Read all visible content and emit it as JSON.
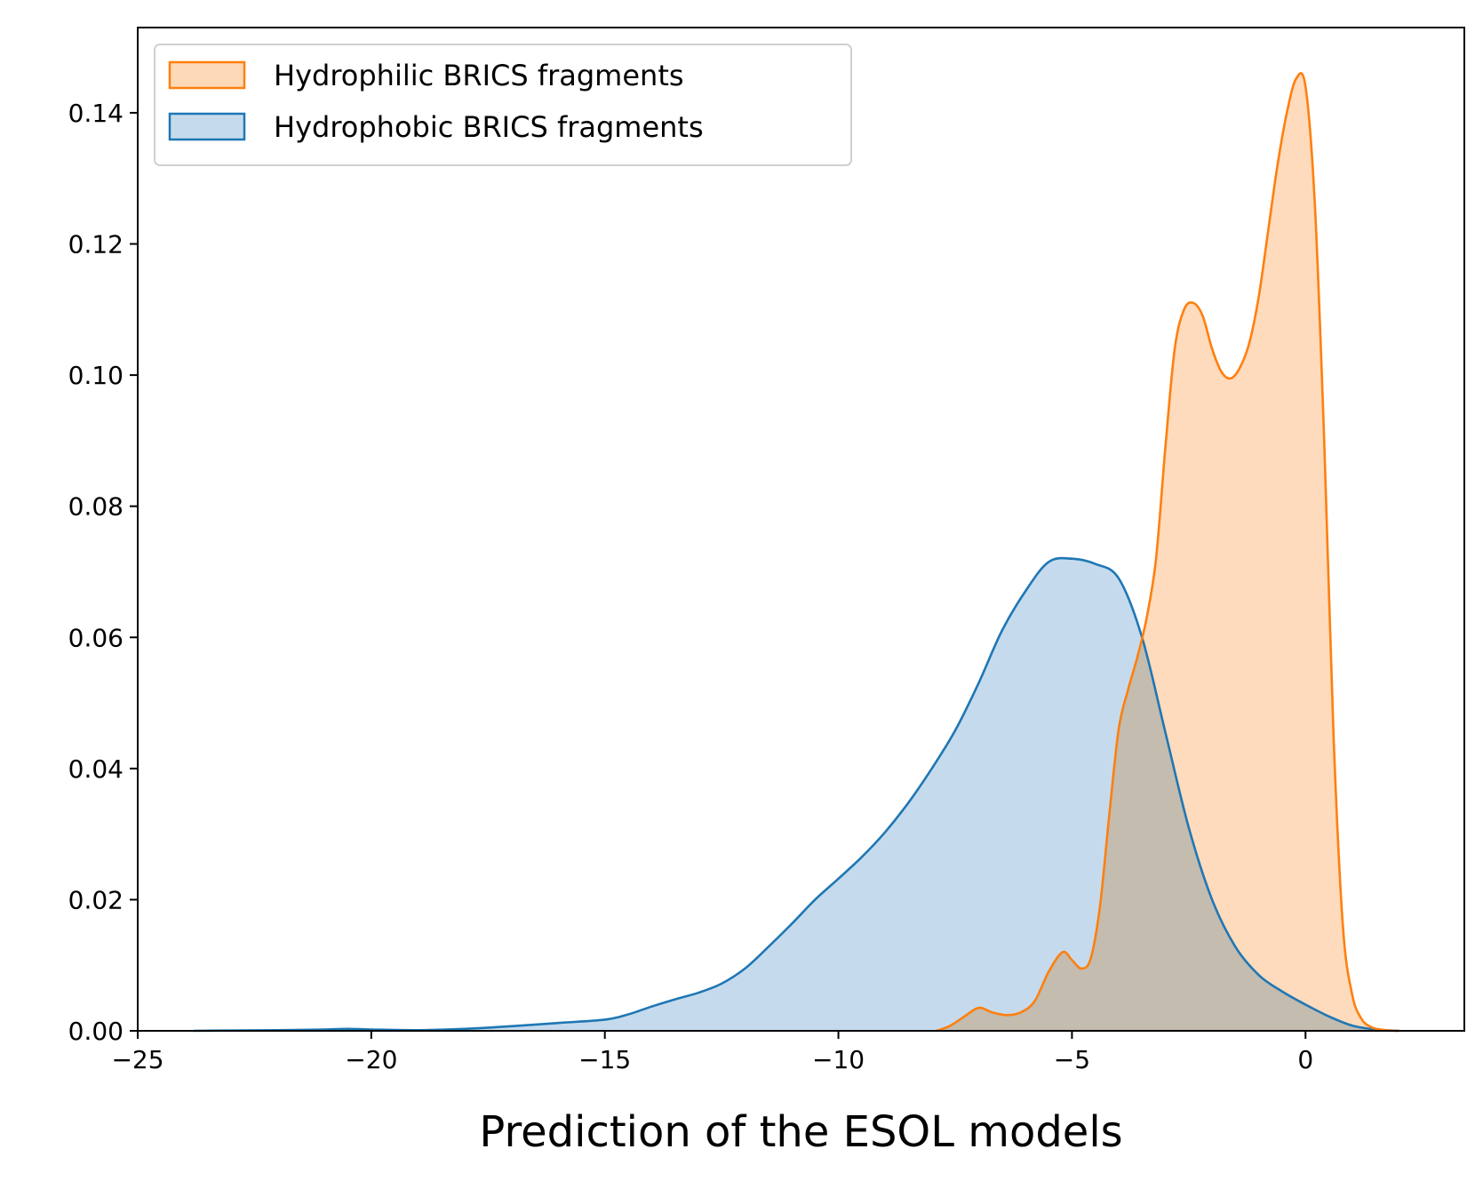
{
  "chart_data": {
    "type": "area",
    "title": "",
    "xlabel": "Prediction of the ESOL models",
    "ylabel": "",
    "xlim": [
      -25,
      3.4
    ],
    "ylim": [
      0,
      0.153
    ],
    "xticks": [
      -25,
      -20,
      -15,
      -10,
      -5,
      0
    ],
    "xtick_labels": [
      "−25",
      "−20",
      "−15",
      "−10",
      "−5",
      "0"
    ],
    "yticks": [
      0,
      0.02,
      0.04,
      0.06,
      0.08,
      0.1,
      0.12,
      0.14
    ],
    "ytick_labels": [
      "0.00",
      "0.02",
      "0.04",
      "0.06",
      "0.08",
      "0.10",
      "0.12",
      "0.14"
    ],
    "grid": false,
    "legend_position": "top-left",
    "series": [
      {
        "name": "Hydrophilic BRICS fragments",
        "color": "#ff7f0e",
        "fill": "#fdd9b8",
        "x": [
          -7.9,
          -7.6,
          -7.3,
          -7.0,
          -6.7,
          -6.4,
          -6.1,
          -5.8,
          -5.5,
          -5.2,
          -5.0,
          -4.8,
          -4.6,
          -4.4,
          -4.2,
          -4.0,
          -3.8,
          -3.6,
          -3.4,
          -3.2,
          -3.0,
          -2.8,
          -2.6,
          -2.4,
          -2.2,
          -2.0,
          -1.8,
          -1.6,
          -1.4,
          -1.2,
          -1.0,
          -0.8,
          -0.6,
          -0.4,
          -0.2,
          0.0,
          0.2,
          0.4,
          0.6,
          0.8,
          1.0,
          1.2,
          1.4,
          1.6,
          1.8,
          2.0
        ],
        "y": [
          0.0,
          0.0008,
          0.0022,
          0.0035,
          0.0028,
          0.0024,
          0.0028,
          0.0045,
          0.009,
          0.012,
          0.0108,
          0.0095,
          0.011,
          0.019,
          0.033,
          0.046,
          0.052,
          0.057,
          0.063,
          0.072,
          0.089,
          0.104,
          0.11,
          0.111,
          0.109,
          0.104,
          0.1005,
          0.0995,
          0.1012,
          0.105,
          0.112,
          0.122,
          0.132,
          0.14,
          0.1452,
          0.144,
          0.126,
          0.09,
          0.045,
          0.016,
          0.0055,
          0.0018,
          0.0006,
          0.0002,
          5e-05,
          0.0
        ]
      },
      {
        "name": "Hydrophobic BRICS fragments",
        "color": "#1f77b4",
        "fill": "#c5dbed",
        "x": [
          -23.8,
          -23.0,
          -22.0,
          -21.0,
          -20.5,
          -20.0,
          -19.0,
          -18.0,
          -17.0,
          -16.0,
          -15.0,
          -14.5,
          -14.0,
          -13.5,
          -13.0,
          -12.5,
          -12.0,
          -11.5,
          -11.0,
          -10.5,
          -10.0,
          -9.5,
          -9.0,
          -8.5,
          -8.0,
          -7.5,
          -7.0,
          -6.5,
          -6.0,
          -5.5,
          -5.0,
          -4.5,
          -4.0,
          -3.5,
          -3.0,
          -2.5,
          -2.0,
          -1.5,
          -1.0,
          -0.5,
          0.0,
          0.5,
          1.0,
          1.5,
          2.0
        ],
        "y": [
          0.0,
          5e-05,
          0.0001,
          0.0002,
          0.0003,
          0.0002,
          0.0001,
          0.0003,
          0.0007,
          0.0012,
          0.0017,
          0.0025,
          0.0037,
          0.0048,
          0.0058,
          0.0072,
          0.0095,
          0.0128,
          0.0163,
          0.02,
          0.0232,
          0.0265,
          0.0303,
          0.0348,
          0.04,
          0.0458,
          0.053,
          0.061,
          0.067,
          0.0715,
          0.072,
          0.0712,
          0.069,
          0.06,
          0.0455,
          0.031,
          0.02,
          0.0128,
          0.0085,
          0.006,
          0.004,
          0.0022,
          0.0008,
          0.0002,
          0.0
        ]
      }
    ]
  }
}
